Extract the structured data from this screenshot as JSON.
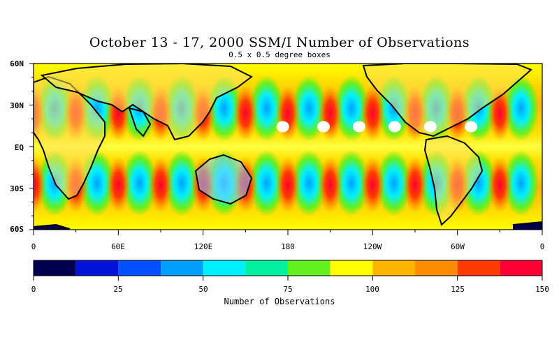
{
  "title": "October 13 - 17, 2000 SSM/I Number of Observations",
  "subtitle": "0.5 x 0.5 degree boxes",
  "lat_labels": [
    "60N",
    "30N",
    "EQ",
    "30S",
    "60S"
  ],
  "lon_labels": [
    "0",
    "60E",
    "120E",
    "180",
    "120W",
    "60W",
    "0"
  ],
  "colorbar": {
    "title": "Number of Observations",
    "tick_labels": [
      "0",
      "25",
      "50",
      "75",
      "100",
      "125",
      "150"
    ],
    "range": [
      0,
      150
    ],
    "colors": [
      "#000050",
      "#0014dc",
      "#0050ff",
      "#00a0ff",
      "#00f0ff",
      "#00f0a0",
      "#64f01e",
      "#ffff00",
      "#ffb400",
      "#ff8c00",
      "#ff3c00",
      "#ff0032"
    ]
  },
  "chart_data": {
    "type": "heatmap",
    "title": "October 13 - 17, 2000 SSM/I Number of Observations",
    "subtitle": "0.5 x 0.5 degree boxes",
    "x_range": [
      "0",
      "0"
    ],
    "y_range": [
      "60S",
      "60N"
    ],
    "color_scale_range": [
      0,
      150
    ],
    "colorbar_label": "Number of Observations"
  }
}
